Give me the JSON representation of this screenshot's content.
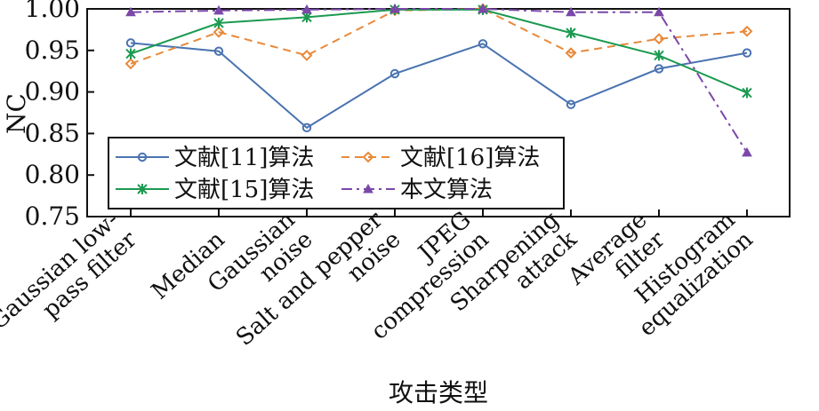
{
  "chart_data": {
    "type": "line",
    "xlabel": "攻击类型",
    "ylabel": "NC",
    "ylim": [
      0.75,
      1.0
    ],
    "yticks": [
      "0.75",
      "0.80",
      "0.85",
      "0.90",
      "0.95",
      "1.00"
    ],
    "categories": [
      [
        "Gaussian low-",
        "pass filter"
      ],
      [
        "Median"
      ],
      [
        "Gaussian",
        "noise"
      ],
      [
        "Salt and pepper",
        "noise"
      ],
      [
        "JPEG",
        "compression"
      ],
      [
        "Sharpening",
        "attack"
      ],
      [
        "Average",
        "filter"
      ],
      [
        "Histogram",
        "equalization"
      ]
    ],
    "legend_placement": "lower-left",
    "series": [
      {
        "name": "文献[11]算法",
        "color": "#4a73b0",
        "dash": "",
        "marker": "circle",
        "values": [
          0.959,
          0.949,
          0.857,
          0.922,
          0.958,
          0.885,
          0.928,
          0.947
        ]
      },
      {
        "name": "文献[16]算法",
        "color": "#e8893a",
        "dash": "9,6",
        "marker": "diamond",
        "values": [
          0.934,
          0.972,
          0.944,
          0.998,
          1.0,
          0.947,
          0.964,
          0.973
        ]
      },
      {
        "name": "文献[15]算法",
        "color": "#1b9a50",
        "dash": "",
        "marker": "star",
        "values": [
          0.946,
          0.983,
          0.99,
          0.999,
          0.999,
          0.971,
          0.944,
          0.899
        ]
      },
      {
        "name": "本文算法",
        "color": "#7a48a8",
        "dash": "12,5,3,5",
        "marker": "triangle",
        "values": [
          0.996,
          0.998,
          0.999,
          1.0,
          1.0,
          0.996,
          0.996,
          0.827
        ]
      }
    ]
  }
}
